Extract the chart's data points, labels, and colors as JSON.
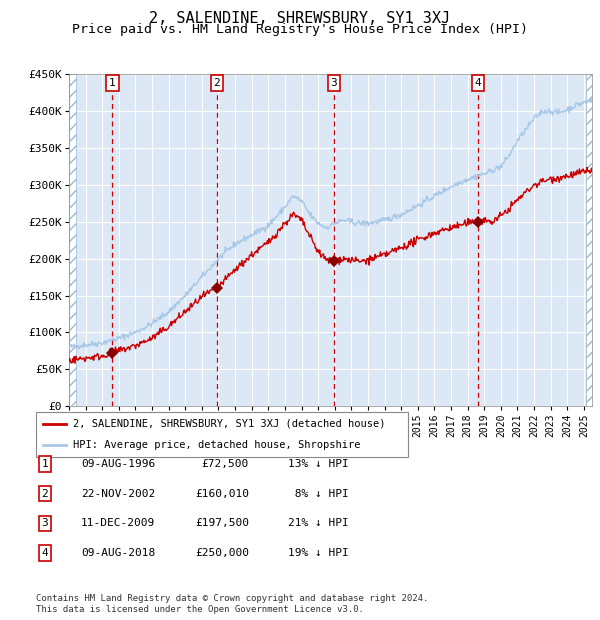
{
  "title": "2, SALENDINE, SHREWSBURY, SY1 3XJ",
  "subtitle": "Price paid vs. HM Land Registry's House Price Index (HPI)",
  "title_fontsize": 11,
  "subtitle_fontsize": 9.5,
  "ylabel_ticks": [
    "£0",
    "£50K",
    "£100K",
    "£150K",
    "£200K",
    "£250K",
    "£300K",
    "£350K",
    "£400K",
    "£450K"
  ],
  "ylabel_values": [
    0,
    50000,
    100000,
    150000,
    200000,
    250000,
    300000,
    350000,
    400000,
    450000
  ],
  "xmin": 1994.0,
  "xmax": 2025.5,
  "ymin": 0,
  "ymax": 450000,
  "hpi_color": "#a8c8e8",
  "price_color": "#cc0000",
  "marker_color": "#880000",
  "vline_color": "#cc0000",
  "plot_bg": "#dce8f5",
  "grid_color": "#ffffff",
  "transactions": [
    {
      "num": 1,
      "date": "09-AUG-1996",
      "year": 1996.61,
      "price": 72500,
      "pct": "13%",
      "dir": "↓"
    },
    {
      "num": 2,
      "date": "22-NOV-2002",
      "year": 2002.9,
      "price": 160010,
      "pct": "8%",
      "dir": "↓"
    },
    {
      "num": 3,
      "date": "11-DEC-2009",
      "year": 2009.95,
      "price": 197500,
      "pct": "21%",
      "dir": "↓"
    },
    {
      "num": 4,
      "date": "09-AUG-2018",
      "year": 2018.61,
      "price": 250000,
      "pct": "19%",
      "dir": "↓"
    }
  ],
  "legend_line1": "2, SALENDINE, SHREWSBURY, SY1 3XJ (detached house)",
  "legend_line2": "HPI: Average price, detached house, Shropshire",
  "footer1": "Contains HM Land Registry data © Crown copyright and database right 2024.",
  "footer2": "This data is licensed under the Open Government Licence v3.0.",
  "hpi_seed_points": [
    [
      1994.0,
      80000
    ],
    [
      1995.0,
      83000
    ],
    [
      1996.0,
      86000
    ],
    [
      1997.0,
      92000
    ],
    [
      1998.0,
      100000
    ],
    [
      1999.0,
      112000
    ],
    [
      2000.0,
      128000
    ],
    [
      2001.0,
      150000
    ],
    [
      2002.0,
      175000
    ],
    [
      2003.0,
      200000
    ],
    [
      2004.0,
      220000
    ],
    [
      2005.0,
      232000
    ],
    [
      2006.0,
      245000
    ],
    [
      2007.0,
      270000
    ],
    [
      2007.5,
      285000
    ],
    [
      2008.0,
      278000
    ],
    [
      2008.5,
      260000
    ],
    [
      2009.0,
      248000
    ],
    [
      2009.5,
      242000
    ],
    [
      2010.0,
      248000
    ],
    [
      2010.5,
      252000
    ],
    [
      2011.0,
      250000
    ],
    [
      2011.5,
      248000
    ],
    [
      2012.0,
      248000
    ],
    [
      2013.0,
      252000
    ],
    [
      2014.0,
      260000
    ],
    [
      2015.0,
      272000
    ],
    [
      2016.0,
      285000
    ],
    [
      2017.0,
      298000
    ],
    [
      2018.0,
      308000
    ],
    [
      2019.0,
      315000
    ],
    [
      2020.0,
      325000
    ],
    [
      2020.5,
      340000
    ],
    [
      2021.0,
      360000
    ],
    [
      2021.5,
      375000
    ],
    [
      2022.0,
      390000
    ],
    [
      2022.5,
      400000
    ],
    [
      2023.0,
      400000
    ],
    [
      2023.5,
      398000
    ],
    [
      2024.0,
      402000
    ],
    [
      2024.5,
      408000
    ],
    [
      2025.0,
      412000
    ],
    [
      2025.5,
      415000
    ]
  ],
  "price_seed_points": [
    [
      1994.0,
      62000
    ],
    [
      1995.0,
      65000
    ],
    [
      1996.0,
      68000
    ],
    [
      1996.61,
      72500
    ],
    [
      1997.0,
      75000
    ],
    [
      1998.0,
      82000
    ],
    [
      1999.0,
      92000
    ],
    [
      2000.0,
      108000
    ],
    [
      2001.0,
      128000
    ],
    [
      2002.0,
      148000
    ],
    [
      2002.9,
      160010
    ],
    [
      2003.0,
      162000
    ],
    [
      2004.0,
      185000
    ],
    [
      2005.0,
      205000
    ],
    [
      2006.0,
      222000
    ],
    [
      2007.0,
      248000
    ],
    [
      2007.5,
      260000
    ],
    [
      2008.0,
      252000
    ],
    [
      2008.5,
      230000
    ],
    [
      2009.0,
      210000
    ],
    [
      2009.5,
      198000
    ],
    [
      2009.95,
      197500
    ],
    [
      2010.0,
      198000
    ],
    [
      2010.5,
      200000
    ],
    [
      2011.0,
      198000
    ],
    [
      2011.5,
      196000
    ],
    [
      2012.0,
      198000
    ],
    [
      2013.0,
      205000
    ],
    [
      2014.0,
      215000
    ],
    [
      2015.0,
      225000
    ],
    [
      2016.0,
      235000
    ],
    [
      2017.0,
      242000
    ],
    [
      2018.0,
      248000
    ],
    [
      2018.61,
      250000
    ],
    [
      2019.0,
      252000
    ],
    [
      2019.5,
      250000
    ],
    [
      2020.0,
      258000
    ],
    [
      2020.5,
      268000
    ],
    [
      2021.0,
      280000
    ],
    [
      2021.5,
      290000
    ],
    [
      2022.0,
      300000
    ],
    [
      2022.5,
      305000
    ],
    [
      2023.0,
      308000
    ],
    [
      2023.5,
      310000
    ],
    [
      2024.0,
      312000
    ],
    [
      2024.5,
      315000
    ],
    [
      2025.0,
      318000
    ],
    [
      2025.5,
      320000
    ]
  ]
}
